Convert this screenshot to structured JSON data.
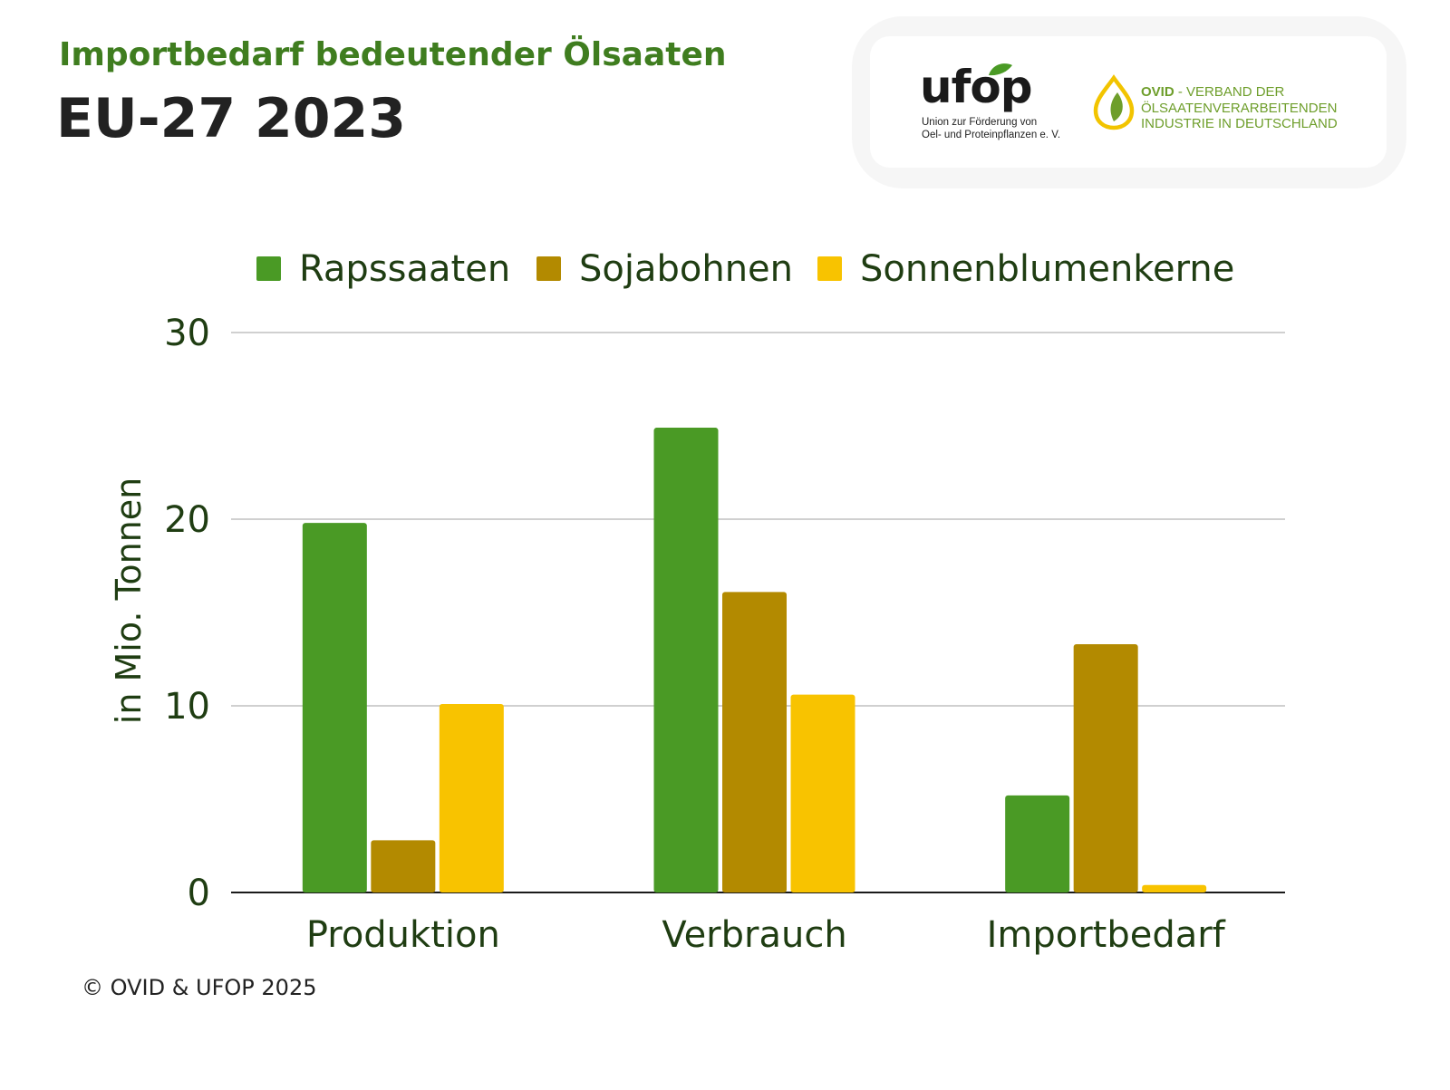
{
  "header": {
    "kicker": "Importbedarf bedeutender Ölsaaten",
    "title": "EU-27 2023"
  },
  "logos": {
    "ufop": {
      "wordmark": "ufop",
      "tagline_line1": "Union zur Förderung von",
      "tagline_line2": "Oel- und Proteinpflanzen e. V."
    },
    "ovid": {
      "acronym": "OVID",
      "line1_rest": " - VERBAND DER",
      "line2": "ÖLSAATENVERARBEITENDEN",
      "line3": "INDUSTRIE IN DEUTSCHLAND"
    }
  },
  "colors": {
    "raps": "#4a9a25",
    "soja": "#b38a00",
    "sonnenblume": "#f8c300",
    "text_dark": "#1f3d12",
    "accent_green": "#3f7d1f",
    "ovid_green": "#6e9e2b",
    "ovid_yellow": "#f2c400"
  },
  "chart_data": {
    "type": "bar",
    "categories": [
      "Produktion",
      "Verbrauch",
      "Importbedarf"
    ],
    "series": [
      {
        "name": "Rapssaaten",
        "values": [
          19.8,
          24.9,
          5.2
        ]
      },
      {
        "name": "Sojabohnen",
        "values": [
          2.8,
          16.1,
          13.3
        ]
      },
      {
        "name": "Sonnenblumenkerne",
        "values": [
          10.1,
          10.6,
          0.4
        ]
      }
    ],
    "ylabel": "in Mio. Tonnen",
    "ylim": [
      0,
      30
    ],
    "yticks": [
      "0",
      "10",
      "20",
      "30"
    ],
    "grid": true,
    "legend": "top"
  },
  "footer": {
    "copyright": "© OVID & UFOP 2025"
  }
}
